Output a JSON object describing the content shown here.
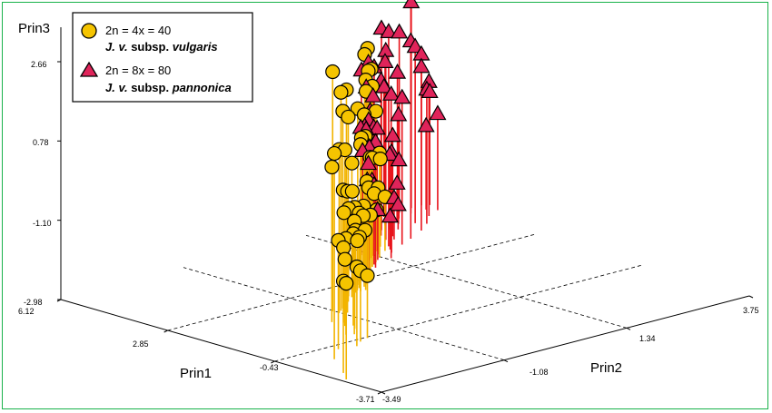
{
  "chart_data": {
    "type": "scatter",
    "projection": "3d-spike",
    "axes": {
      "z": {
        "label": "Prin3",
        "ticks": [
          "2.66",
          "0.78",
          "-1.10",
          "-2.98"
        ],
        "range": [
          -2.98,
          2.66
        ]
      },
      "x": {
        "label": "Prin1",
        "ticks": [
          "6.12",
          "2.85",
          "-0.43",
          "-3.71"
        ],
        "range": [
          -3.71,
          6.12
        ]
      },
      "y": {
        "label": "Prin2",
        "ticks": [
          "-3.49",
          "-1.08",
          "1.34",
          "3.75"
        ],
        "range": [
          -3.49,
          3.75
        ]
      }
    },
    "legend": {
      "placement": "top-left",
      "entries": [
        {
          "line1": "2n = 4x = 40",
          "line2_italic": "J. v.",
          "line2_rest": " subsp. ",
          "line2_name": "vulgaris",
          "marker": "circle",
          "color": "#F5C400",
          "spike": "#F2B400"
        },
        {
          "line1": "2n = 8x = 80",
          "line2_italic": "J. v.",
          "line2_rest": " subsp. ",
          "line2_name": "pannonica",
          "marker": "triangle",
          "color": "#E0245A",
          "spike": "#E8141C"
        }
      ]
    },
    "series": [
      {
        "marker": "circle",
        "points": [
          [
            3.6,
            -2.8,
            1.9
          ],
          [
            4.5,
            -3.2,
            -0.8
          ],
          [
            4.9,
            -3.4,
            -0.7
          ],
          [
            3.2,
            -2.1,
            -1.1
          ],
          [
            3.0,
            -1.9,
            -1.3
          ],
          [
            2.9,
            -1.7,
            -1.5
          ],
          [
            3.1,
            -2.4,
            -0.4
          ],
          [
            2.5,
            -1.7,
            -0.3
          ],
          [
            2.2,
            -1.5,
            -0.1
          ],
          [
            2.4,
            -1.8,
            -0.7
          ],
          [
            2.0,
            -1.4,
            -0.8
          ],
          [
            1.9,
            -1.5,
            -1.4
          ],
          [
            1.7,
            -1.4,
            -1.2
          ],
          [
            1.4,
            -1.2,
            -0.5
          ],
          [
            1.2,
            -1.0,
            -0.1
          ],
          [
            1.5,
            -1.5,
            0.7
          ],
          [
            1.1,
            -1.1,
            0.9
          ],
          [
            0.9,
            -0.9,
            1.7
          ],
          [
            0.7,
            -0.7,
            2.1
          ],
          [
            0.9,
            -1.1,
            2.7
          ],
          [
            1.0,
            -1.0,
            2.2
          ],
          [
            0.6,
            -0.6,
            1.4
          ],
          [
            0.5,
            -0.6,
            0.6
          ],
          [
            0.4,
            -0.4,
            0.2
          ],
          [
            0.6,
            -0.7,
            -0.3
          ],
          [
            0.3,
            -0.4,
            -0.9
          ],
          [
            0.2,
            -0.2,
            -1.5
          ],
          [
            0.1,
            -0.1,
            -1.8
          ],
          [
            0.0,
            0.0,
            -1.2
          ],
          [
            0.1,
            -0.2,
            -0.6
          ],
          [
            0.2,
            -0.1,
            0.5
          ],
          [
            0.0,
            0.1,
            1.1
          ],
          [
            -0.1,
            0.2,
            1.6
          ],
          [
            0.2,
            0.0,
            2.0
          ],
          [
            -0.3,
            0.3,
            2.4
          ],
          [
            -0.5,
            0.5,
            1.9
          ],
          [
            -0.2,
            0.1,
            1.2
          ],
          [
            -0.4,
            0.3,
            0.4
          ],
          [
            -0.6,
            0.6,
            -0.2
          ],
          [
            -0.7,
            0.6,
            -0.8
          ],
          [
            -0.5,
            0.4,
            -1.5
          ],
          [
            -0.3,
            0.2,
            -1.9
          ],
          [
            -0.9,
            0.8,
            -1.7
          ],
          [
            -1.1,
            1.0,
            -1.3
          ],
          [
            -0.8,
            0.7,
            -1.0
          ],
          [
            -0.9,
            0.7,
            0.2
          ],
          [
            -1.0,
            0.9,
            1.3
          ],
          [
            -1.3,
            1.0,
            2.1
          ],
          [
            -1.5,
            1.2,
            1.5
          ],
          [
            -1.2,
            1.1,
            0.6
          ],
          [
            -1.4,
            1.3,
            -0.5
          ],
          [
            -1.6,
            1.4,
            -1.4
          ],
          [
            -1.8,
            1.5,
            -2.0
          ],
          [
            -1.7,
            1.6,
            -1.7
          ],
          [
            -2.0,
            1.7,
            -0.9
          ],
          [
            -0.8,
            0.6,
            -1.4
          ],
          [
            -0.6,
            0.5,
            -1.9
          ],
          [
            -1.0,
            0.9,
            -0.4
          ]
        ]
      },
      {
        "marker": "triangle",
        "points": [
          [
            -1.2,
            0.8,
            0.3
          ],
          [
            -1.4,
            1.1,
            -0.3
          ],
          [
            -1.6,
            1.3,
            0.8
          ],
          [
            -1.9,
            1.4,
            -0.9
          ],
          [
            -2.1,
            1.6,
            -1.4
          ],
          [
            -1.9,
            1.8,
            2.1
          ],
          [
            -2.3,
            2.0,
            1.5
          ],
          [
            -2.6,
            2.1,
            0.7
          ],
          [
            -2.4,
            2.2,
            -0.6
          ],
          [
            -2.8,
            2.4,
            -1.2
          ],
          [
            -2.9,
            2.3,
            1.8
          ],
          [
            -3.1,
            2.5,
            0.9
          ],
          [
            -3.0,
            2.7,
            -0.4
          ],
          [
            -3.3,
            2.9,
            -1.6
          ],
          [
            -3.5,
            3.0,
            0.4
          ],
          [
            -3.6,
            3.1,
            1.3
          ],
          [
            -3.4,
            3.2,
            2.6
          ],
          [
            -3.7,
            3.4,
            1.9
          ],
          [
            -3.2,
            2.8,
            -2.1
          ],
          [
            -2.7,
            2.5,
            -2.4
          ],
          [
            -2.2,
            2.1,
            -2.0
          ],
          [
            -1.7,
            1.7,
            -2.2
          ],
          [
            -1.3,
            1.2,
            -1.8
          ],
          [
            -1.1,
            1.0,
            -1.1
          ],
          [
            -1.5,
            1.1,
            0.1
          ],
          [
            -1.8,
            1.2,
            1.4
          ],
          [
            -2.0,
            1.5,
            0.3
          ],
          [
            -2.2,
            1.7,
            -0.2
          ],
          [
            -2.5,
            1.9,
            1.1
          ],
          [
            -2.7,
            1.8,
            -0.9
          ],
          [
            -2.9,
            2.0,
            0.5
          ],
          [
            -3.1,
            2.1,
            -0.5
          ],
          [
            -3.3,
            2.3,
            0.9
          ],
          [
            -3.5,
            2.6,
            -0.8
          ],
          [
            -3.6,
            2.8,
            0.1
          ],
          [
            -3.7,
            3.6,
            0.6
          ],
          [
            -3.6,
            3.7,
            -0.3
          ],
          [
            -3.4,
            3.5,
            -1.0
          ],
          [
            -2.6,
            3.0,
            0.2
          ],
          [
            -2.3,
            2.7,
            0.9
          ],
          [
            -2.0,
            2.3,
            1.7
          ],
          [
            -1.8,
            2.0,
            0.5
          ],
          [
            -1.5,
            1.6,
            -0.6
          ],
          [
            -1.2,
            1.4,
            0.9
          ],
          [
            -0.9,
            0.9,
            0.0
          ],
          [
            -1.0,
            0.8,
            -0.9
          ],
          [
            -0.8,
            0.7,
            0.6
          ],
          [
            -2.8,
            2.9,
            1.2
          ],
          [
            -3.0,
            3.3,
            0.2
          ],
          [
            -3.2,
            3.6,
            -0.7
          ]
        ]
      }
    ]
  }
}
